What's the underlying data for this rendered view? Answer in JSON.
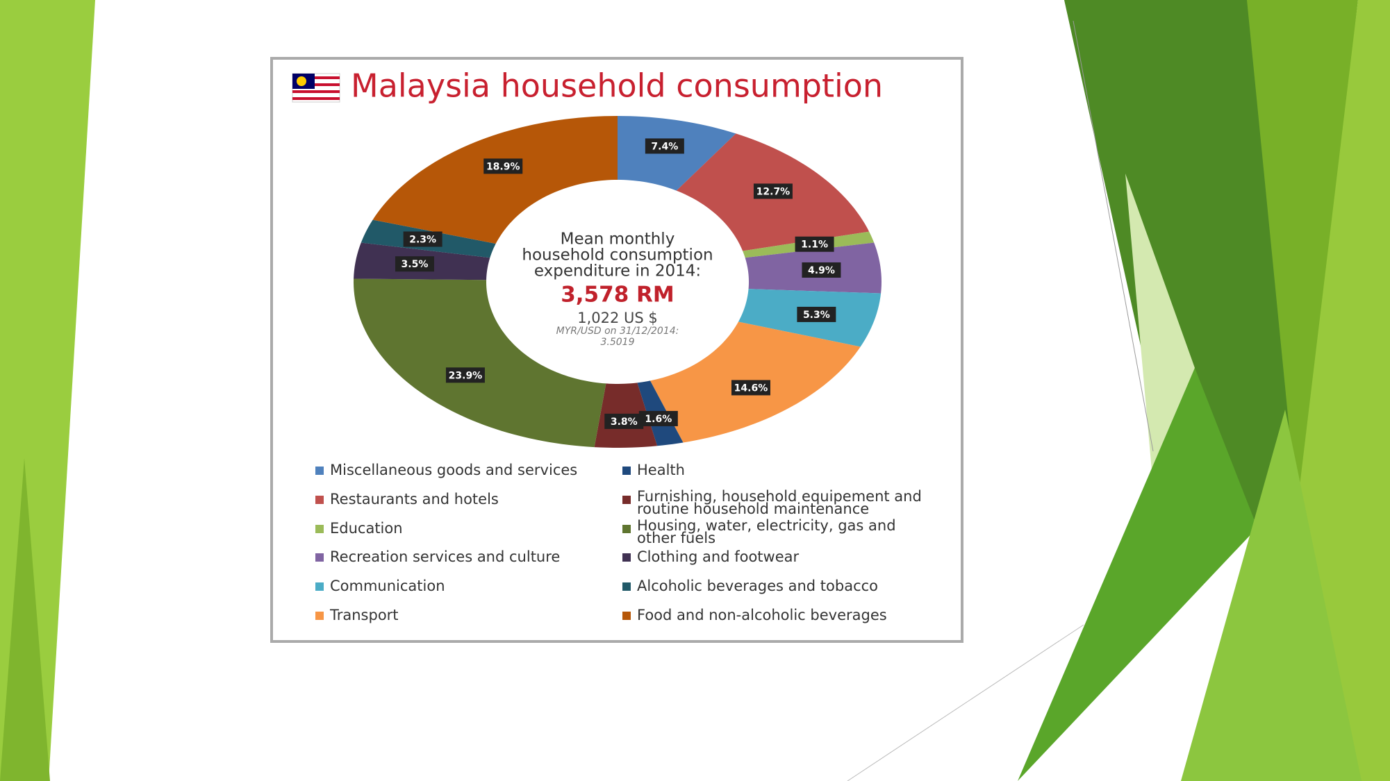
{
  "chart_data": {
    "type": "donut",
    "title": "Malaysia household consumption",
    "center_text": [
      "Mean monthly",
      "household consumption",
      "expenditure in 2014:"
    ],
    "center_value": "3,578 RM",
    "center_subvalue": "1,022 US $",
    "center_note": [
      "MYR/USD on 31/12/2014:",
      "3.5019"
    ],
    "categories": [
      "Miscellaneous goods and services",
      "Restaurants and hotels",
      "Education",
      "Recreation services and culture",
      "Communication",
      "Transport",
      "Health",
      "Furnishing, household equipement and routine household maintenance",
      "Housing, water, electricity, gas and other fuels",
      "Clothing and footwear",
      "Alcoholic beverages and tobacco",
      "Food and non-alcoholic beverages"
    ],
    "values": [
      7.4,
      12.7,
      1.1,
      4.9,
      5.3,
      14.6,
      1.6,
      3.8,
      23.9,
      3.5,
      2.3,
      18.9
    ],
    "value_labels": [
      "7.4%",
      "12.7%",
      "1.1%",
      "4.9%",
      "5.3%",
      "14.6%",
      "1.6%",
      "3.8%",
      "23.9%",
      "3.5%",
      "2.3%",
      "18.9%"
    ],
    "colors": [
      "#4f81bd",
      "#c0504d",
      "#9bbb59",
      "#8064a2",
      "#4bacc6",
      "#f79646",
      "#1f497d",
      "#772c2a",
      "#5f7530",
      "#403152",
      "#215968",
      "#b65708"
    ],
    "legend": "bottom"
  }
}
